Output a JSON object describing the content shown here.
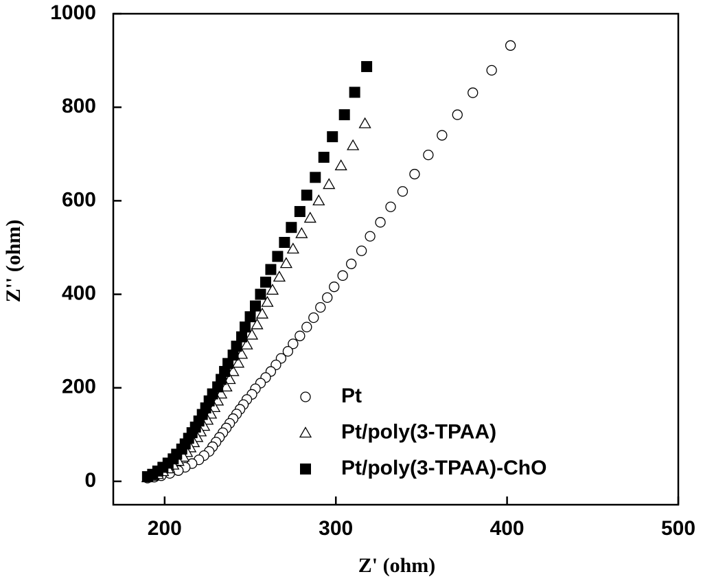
{
  "chart_data": {
    "type": "scatter",
    "xlabel": "Z' (ohm)",
    "ylabel": "Z'' (ohm)",
    "xlim": [
      170,
      500
    ],
    "ylim": [
      -50,
      1000
    ],
    "xticks": [
      200,
      300,
      400,
      500
    ],
    "yticks": [
      0,
      200,
      400,
      600,
      800,
      1000
    ],
    "legend": "lower right",
    "series": [
      {
        "name": "Pt",
        "color": "#000000",
        "marker": "circle-open",
        "x": [
          402,
          391,
          380,
          371,
          362,
          354,
          346,
          339,
          332,
          326,
          320,
          315,
          309,
          304,
          299,
          295,
          291,
          287,
          283,
          279,
          275,
          272,
          268,
          265,
          262,
          259,
          256,
          253,
          251,
          248,
          246,
          244,
          242,
          240,
          238,
          236,
          234,
          232,
          230,
          228,
          226,
          223,
          220,
          216,
          212,
          208,
          203,
          198,
          194,
          190
        ],
        "values": [
          932,
          879,
          831,
          784,
          740,
          698,
          657,
          620,
          587,
          554,
          524,
          493,
          465,
          440,
          416,
          393,
          372,
          350,
          330,
          311,
          294,
          278,
          263,
          249,
          235,
          222,
          210,
          198,
          186,
          175,
          164,
          154,
          144,
          134,
          124,
          114,
          104,
          94,
          84,
          74,
          64,
          55,
          46,
          38,
          30,
          23,
          17,
          12,
          9,
          7
        ]
      },
      {
        "name": "Pt/poly(3-TPAA)",
        "color": "#000000",
        "marker": "triangle-open",
        "x": [
          317,
          310,
          303,
          296,
          290,
          285,
          280,
          275,
          271,
          267,
          263,
          260,
          257,
          254,
          251,
          248,
          245,
          243,
          240,
          238,
          236,
          233,
          231,
          229,
          227,
          225,
          223,
          221,
          219,
          217,
          215,
          213,
          211,
          208,
          205,
          202,
          199,
          196,
          193,
          190
        ],
        "values": [
          765,
          718,
          675,
          635,
          600,
          563,
          530,
          497,
          466,
          437,
          409,
          383,
          358,
          335,
          313,
          292,
          272,
          253,
          235,
          218,
          202,
          187,
          172,
          158,
          144,
          131,
          118,
          106,
          94,
          83,
          72,
          62,
          52,
          43,
          35,
          27,
          21,
          15,
          11,
          8
        ]
      },
      {
        "name": "Pt/poly(3-TPAA)-ChO",
        "color": "#000000",
        "marker": "square-filled",
        "x": [
          318,
          311,
          305,
          298,
          293,
          288,
          283,
          279,
          274,
          270,
          266,
          262,
          259,
          256,
          253,
          250,
          247,
          245,
          242,
          240,
          237,
          235,
          233,
          231,
          228,
          226,
          224,
          222,
          220,
          218,
          216,
          214,
          212,
          210,
          207,
          205,
          202,
          199,
          196,
          193,
          190
        ],
        "values": [
          887,
          832,
          784,
          737,
          693,
          650,
          612,
          577,
          543,
          511,
          481,
          453,
          426,
          400,
          375,
          352,
          330,
          309,
          289,
          270,
          252,
          235,
          218,
          202,
          187,
          172,
          157,
          143,
          129,
          116,
          104,
          92,
          80,
          69,
          58,
          48,
          39,
          30,
          22,
          15,
          10
        ]
      }
    ]
  }
}
